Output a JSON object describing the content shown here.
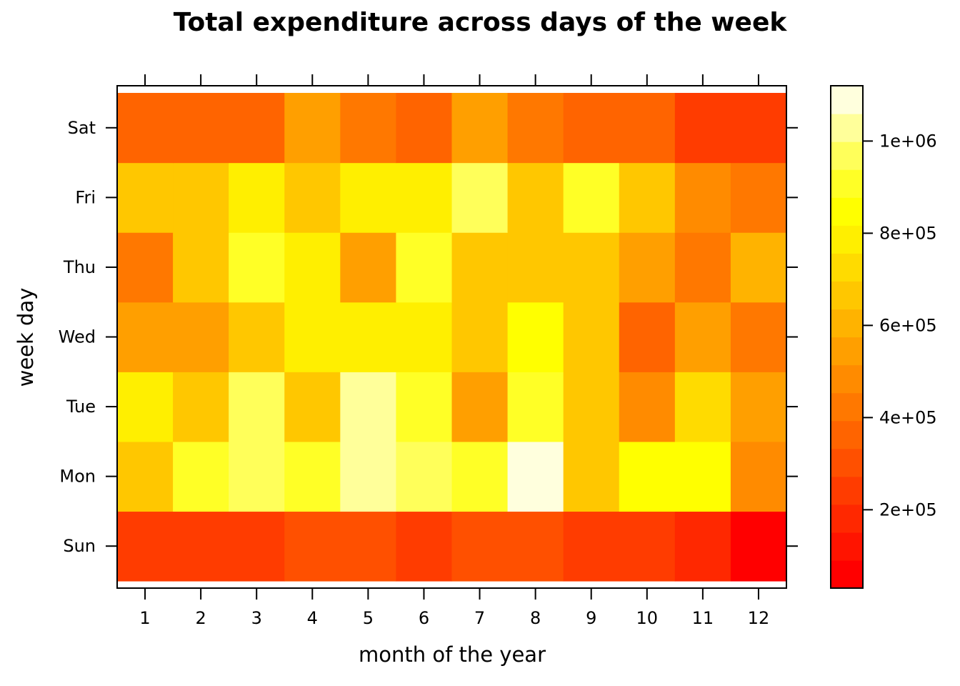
{
  "chart_data": {
    "type": "heatmap",
    "title": "Total expenditure across days of the week",
    "xlabel": "month of the year",
    "ylabel": "week day",
    "x_categories": [
      "1",
      "2",
      "3",
      "4",
      "5",
      "6",
      "7",
      "8",
      "9",
      "10",
      "11",
      "12"
    ],
    "y_categories": [
      "Sun",
      "Mon",
      "Tue",
      "Wed",
      "Thu",
      "Fri",
      "Sat"
    ],
    "values": [
      [
        230000,
        230000,
        230000,
        280000,
        280000,
        230000,
        280000,
        280000,
        230000,
        230000,
        180000,
        30000
      ],
      [
        680000,
        910000,
        990000,
        910000,
        1050000,
        990000,
        910000,
        1120000,
        640000,
        850000,
        850000,
        480000
      ],
      [
        790000,
        640000,
        990000,
        640000,
        1050000,
        910000,
        520000,
        910000,
        680000,
        480000,
        720000,
        560000
      ],
      [
        560000,
        560000,
        680000,
        790000,
        790000,
        790000,
        640000,
        850000,
        680000,
        350000,
        560000,
        430000
      ],
      [
        430000,
        640000,
        910000,
        790000,
        520000,
        910000,
        680000,
        640000,
        680000,
        560000,
        430000,
        600000
      ],
      [
        640000,
        680000,
        790000,
        680000,
        790000,
        790000,
        990000,
        640000,
        910000,
        640000,
        480000,
        430000
      ],
      [
        350000,
        350000,
        350000,
        560000,
        430000,
        350000,
        560000,
        430000,
        350000,
        350000,
        230000,
        230000
      ]
    ],
    "colorbar": {
      "min": 30000,
      "max": 1120000,
      "bins": 18,
      "ticks": [
        200000,
        400000,
        600000,
        800000,
        1000000
      ],
      "tick_labels": [
        "2e+05",
        "4e+05",
        "6e+05",
        "8e+05",
        "1e+06"
      ],
      "palette": [
        "#FF0000",
        "#FF1400",
        "#FF2800",
        "#FF3C00",
        "#FF5000",
        "#FF6400",
        "#FF7800",
        "#FF8B00",
        "#FF9F00",
        "#FFB300",
        "#FFC700",
        "#FFDB00",
        "#FFEF00",
        "#FFFF00",
        "#FFFF26",
        "#FFFF5A",
        "#FFFF9A",
        "#FFFFDD"
      ]
    },
    "grid": false,
    "legend": "right"
  }
}
